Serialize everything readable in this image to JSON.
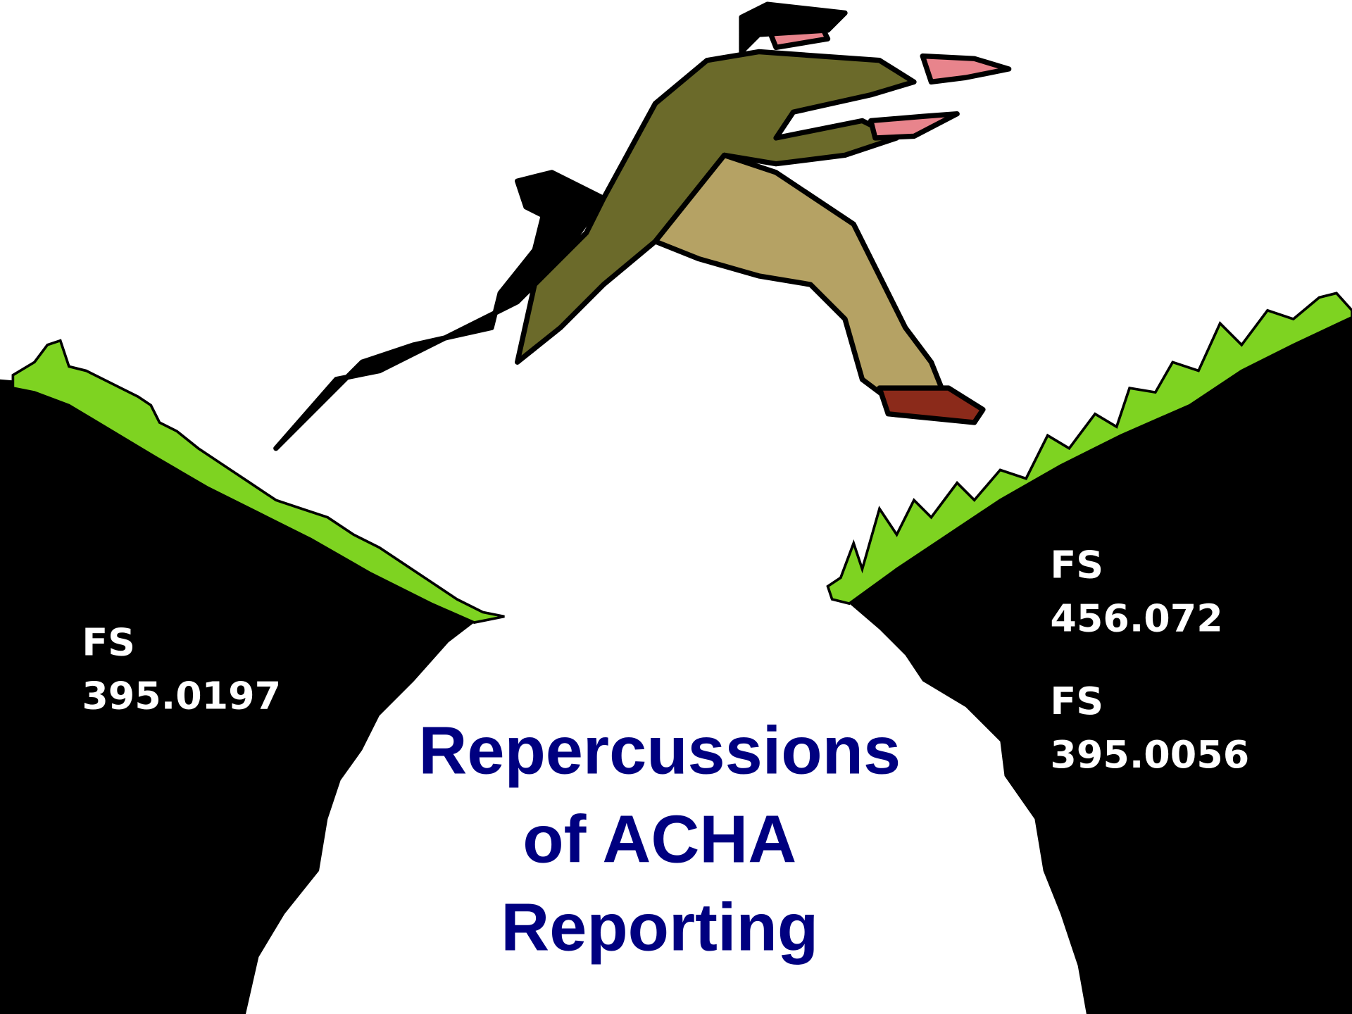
{
  "title": {
    "lines": [
      "Repercussions",
      "of ACHA",
      "Reporting"
    ]
  },
  "left_cliff": {
    "labels": [
      "FS",
      "395.0197"
    ]
  },
  "right_cliff": {
    "labels": [
      "FS",
      "456.072",
      "FS",
      "395.0056"
    ]
  }
}
